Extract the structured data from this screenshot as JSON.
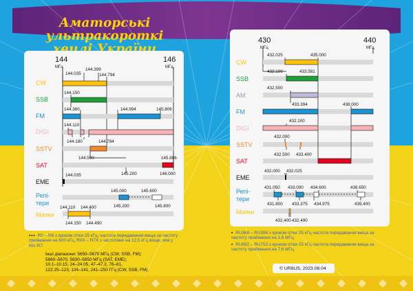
{
  "title": {
    "line1": "Аматорські ультракороткі",
    "line2": "хвилі України"
  },
  "colors": {
    "sky": "#1FA3DE",
    "wheat": "#F3D31A",
    "purple": "#6B2B82",
    "cw": "#FFC20E",
    "ssb": "#1E9F3A",
    "am": "#BFBBD6",
    "fm": "#1C93D3",
    "digi": "#F7B3B8",
    "sstv": "#F0892E",
    "sat": "#E3061F",
    "eme": "#111111",
    "repeaters": "#1C93D3",
    "beacons": "#FFC20E"
  },
  "band144": {
    "scale_start": "144",
    "scale_start_unit": "МГц",
    "scale_end": "146",
    "scale_end_unit": "МГц",
    "modes": [
      "CW",
      "SSB",
      "FM",
      "DIGI",
      "SSTV",
      "SAT",
      "EME",
      "Репі-\nтери",
      "Маяки"
    ],
    "labels": {
      "cw_a": "144.035",
      "cw_b": "144.399",
      "cw_c": "144.794",
      "ssb": "144.150",
      "fm_a": "144.360",
      "fm_b": "144.994",
      "fm_c": "145.806",
      "digi_a": "144.110",
      "digi_b": "144.180",
      "digi_c": "144.794",
      "sstv": "144.500",
      "sat_a": "145.806",
      "sat_b": "145.200",
      "sat_c": "146.000",
      "eme": "144.035",
      "rep_a": "145.000",
      "rep_b": "145.600",
      "rep_c": "145.200",
      "rep_d": "145.800",
      "bcn_a": "144.110",
      "bcn_b": "144.400",
      "bcn_c": "144.150",
      "bcn_d": "144.490"
    }
  },
  "band430": {
    "scale_start": "430",
    "scale_start_unit": "МГц",
    "scale_end": "440",
    "scale_end_unit": "МГц",
    "modes": [
      "CW",
      "SSB",
      "AM",
      "FM",
      "DIGI",
      "SSTV",
      "SAT",
      "EME",
      "Репі-\nтери",
      "Маяки"
    ],
    "labels": {
      "cw_a": "432.025",
      "cw_b": "435.000",
      "ssb_a": "432.100",
      "ssb_b": "433.581",
      "am_a": "432.500",
      "am_b": "433.394",
      "fm": "438.000",
      "digi": "432.100",
      "sstv_a": "432.000",
      "sstv_b": "432.500",
      "sstv_c": "433.400",
      "eme_a": "432.000",
      "eme_b": "432.025",
      "rep_a": "431.050",
      "rep_b": "433.000",
      "rep_c": "434.600",
      "rep_d": "438.650",
      "rep_e": "431.800",
      "rep_f": "433.375",
      "rep_g": "434.975",
      "rep_h": "439.400",
      "bcn_a": "432.400",
      "bcn_b": "432.490"
    }
  },
  "notes": {
    "n1": "R0 – R8 з кроком сітки 25 кГц, частота передавання вища за частоту приймання на 600 кГц, R0X – R7X з частотами на 12,5 кГц вище, між у R0–R7.",
    "n2": "RU368 – RU398 з кроком сітки 25 кГц частота передавання вища за частоту приймання на 1,6 МГц.",
    "n3": "RU692 – RU753 з кроком сітки 25 кГц частота передавання вища за частоту приймання на 7,6 МГц.",
    "other_title": "Інші діапазони: 5650–5670 МГц (CW, SSB, FM);",
    "other_lines": [
      "5660–5670, 5830–5850 МГц (SAT, EME);",
      "10.1–10.15, 24–24.05, 47–47.2, 76–81,",
      "122.25–123, 134–141, 241–250 ГГц (CW, SSB, FM)."
    ],
    "copyright": "© UR8US, 2023.08.04"
  }
}
